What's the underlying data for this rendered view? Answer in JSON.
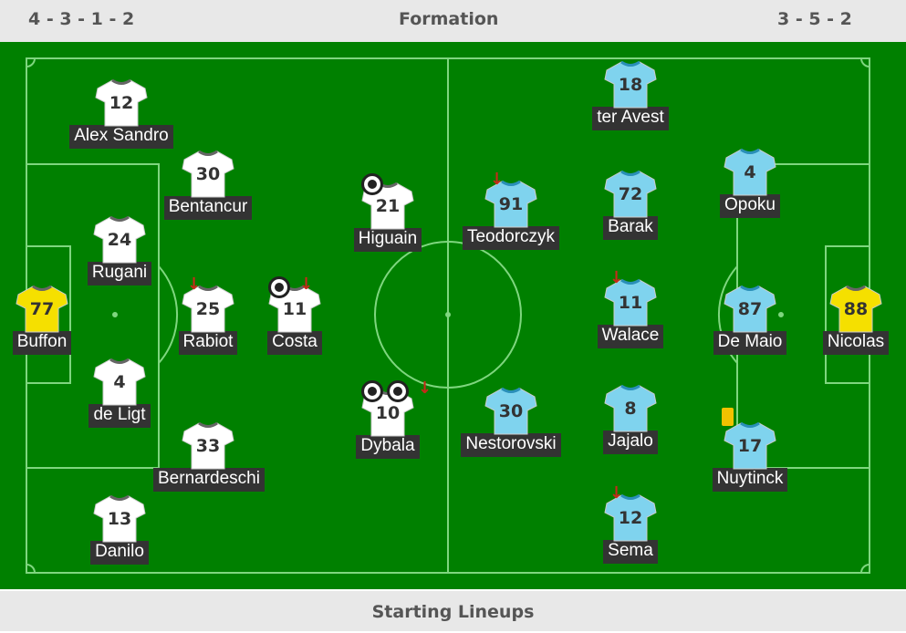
{
  "header": {
    "home_formation": "4 - 3 - 1 - 2",
    "title": "Formation",
    "away_formation": "3 - 5 - 2"
  },
  "footer": {
    "label": "Starting Lineups"
  },
  "colors": {
    "pitch": "#008000",
    "home_shirt": "#ffffff",
    "away_shirt": "#7fd3ee",
    "goalkeeper_shirt": "#f5e000"
  },
  "home": [
    {
      "number": "12",
      "name": "Alex Sandro",
      "kit": "home",
      "events": []
    },
    {
      "number": "30",
      "name": "Bentancur",
      "kit": "home",
      "events": []
    },
    {
      "number": "24",
      "name": "Rugani",
      "kit": "home",
      "events": []
    },
    {
      "number": "77",
      "name": "Buffon",
      "kit": "gk",
      "events": []
    },
    {
      "number": "25",
      "name": "Rabiot",
      "kit": "home",
      "events": [
        "substituted-off"
      ]
    },
    {
      "number": "11",
      "name": "Costa",
      "kit": "home",
      "events": [
        "goal",
        "substituted-off"
      ]
    },
    {
      "number": "4",
      "name": "de Ligt",
      "kit": "home",
      "events": []
    },
    {
      "number": "33",
      "name": "Bernardeschi",
      "kit": "home",
      "events": []
    },
    {
      "number": "13",
      "name": "Danilo",
      "kit": "home",
      "events": []
    },
    {
      "number": "21",
      "name": "Higuain",
      "kit": "home",
      "events": [
        "goal"
      ]
    },
    {
      "number": "10",
      "name": "Dybala",
      "kit": "home",
      "events": [
        "goal",
        "goal",
        "substituted-off"
      ]
    }
  ],
  "away": [
    {
      "number": "18",
      "name": "ter Avest",
      "kit": "away",
      "events": []
    },
    {
      "number": "91",
      "name": "Teodorczyk",
      "kit": "away",
      "events": [
        "substituted-off"
      ]
    },
    {
      "number": "72",
      "name": "Barak",
      "kit": "away",
      "events": []
    },
    {
      "number": "4",
      "name": "Opoku",
      "kit": "away",
      "events": []
    },
    {
      "number": "11",
      "name": "Walace",
      "kit": "away",
      "events": [
        "substituted-off"
      ]
    },
    {
      "number": "87",
      "name": "De Maio",
      "kit": "away",
      "events": []
    },
    {
      "number": "88",
      "name": "Nicolas",
      "kit": "gk",
      "events": []
    },
    {
      "number": "30",
      "name": "Nestorovski",
      "kit": "away",
      "events": []
    },
    {
      "number": "8",
      "name": "Jajalo",
      "kit": "away",
      "events": []
    },
    {
      "number": "17",
      "name": "Nuytinck",
      "kit": "away",
      "events": [
        "yellow-card"
      ]
    },
    {
      "number": "12",
      "name": "Sema",
      "kit": "away",
      "events": [
        "substituted-off"
      ]
    }
  ]
}
